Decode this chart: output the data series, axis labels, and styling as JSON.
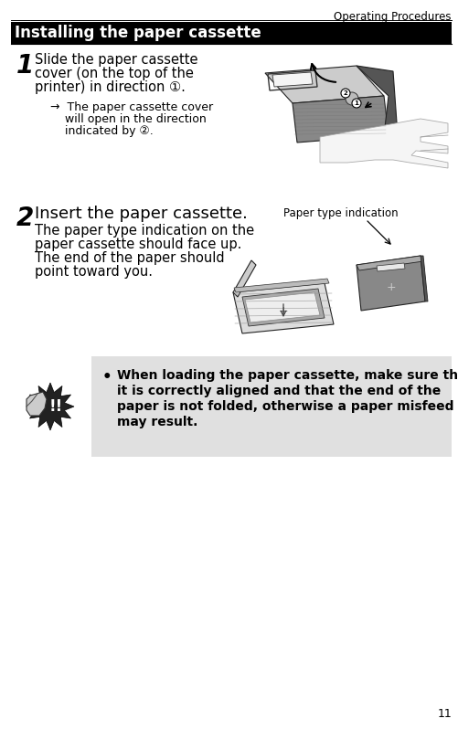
{
  "page_width": 5.02,
  "page_height": 7.98,
  "dpi": 100,
  "bg_color": "#ffffff",
  "header_text": "Operating Procedures",
  "header_fontsize": 8.5,
  "page_number": "11",
  "page_number_fontsize": 9,
  "section_title": "Installing the paper cassette",
  "section_title_fontsize": 12,
  "step1_number": "1",
  "step1_number_fontsize": 20,
  "step1_line1": "Slide the paper cassette",
  "step1_line2": "cover (on the top of the",
  "step1_line3": "printer) in direction ①.",
  "step1_body_fontsize": 10.5,
  "step1_sub_line1": "→  The paper cassette cover",
  "step1_sub_line2": "    will open in the direction",
  "step1_sub_line3": "    indicated by ②.",
  "step1_sub_fontsize": 9,
  "step2_number": "2",
  "step2_number_fontsize": 20,
  "step2_title": "Insert the paper cassette.",
  "step2_title_fontsize": 13,
  "step2_line1": "The paper type indication on the",
  "step2_line2": "paper cassette should face up.",
  "step2_line3": "The end of the paper should",
  "step2_line4": "point toward you.",
  "step2_body_fontsize": 10.5,
  "paper_type_label": "Paper type indication",
  "paper_type_fontsize": 8.5,
  "note_bullet": "•",
  "note_line1": "When loading the paper cassette, make sure that",
  "note_line2": "it is correctly aligned and that the end of the",
  "note_line3": "paper is not folded, otherwise a paper misfeed",
  "note_line4": "may result.",
  "note_fontsize": 10,
  "note_bg": "#e0e0e0",
  "note_text_bold": true
}
